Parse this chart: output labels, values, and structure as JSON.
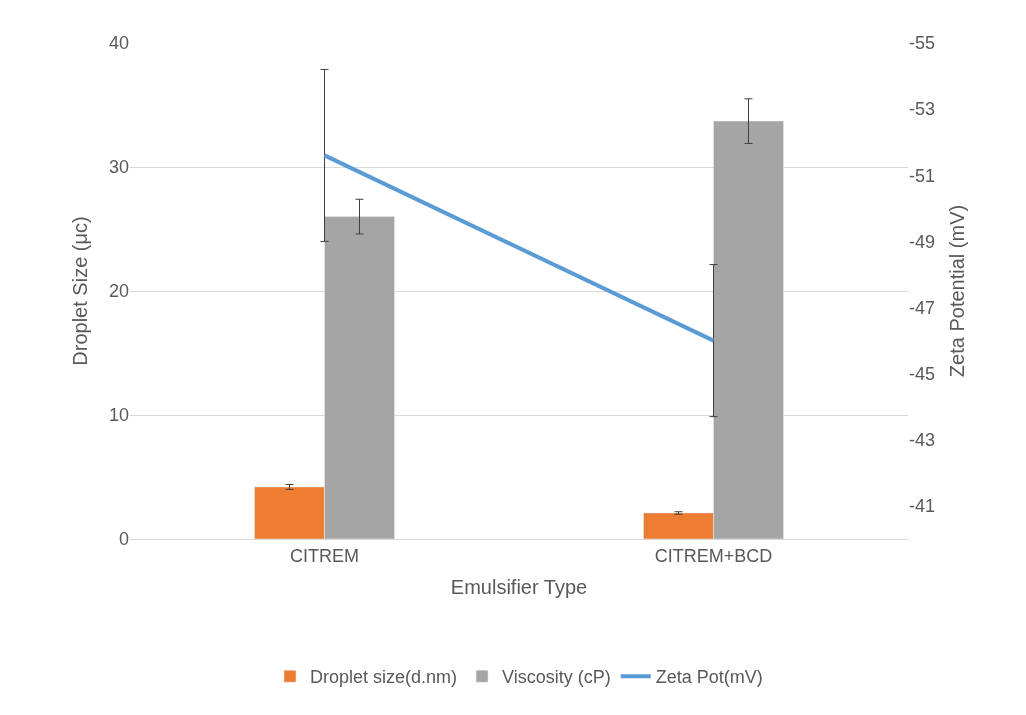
{
  "chart_data": {
    "type": "bar",
    "xlabel": "Emulsifier Type",
    "ylabel": "Droplet Size (μc)",
    "y2label": "Zeta Potential (mV)",
    "categories": [
      "CITREM",
      "CITREM+BCD"
    ],
    "series": [
      {
        "name": "Droplet size(d.nm)",
        "color": "#ed7d31",
        "values": [
          4.2,
          2.1
        ],
        "errors": [
          0.2,
          0.1
        ]
      },
      {
        "name": "Viscosity (cP)",
        "color": "#a5a5a5",
        "values": [
          26.0,
          33.7
        ],
        "errors": [
          1.4,
          1.8
        ]
      },
      {
        "name": "Zeta Pot(mV)",
        "type": "line",
        "axis": "y2",
        "color": "#5b9bd5",
        "values": [
          -51.6,
          -46.0
        ],
        "errors": [
          2.6,
          2.3
        ]
      }
    ],
    "ylim": [
      0,
      40
    ],
    "yticks": [
      0,
      10,
      20,
      30,
      40
    ],
    "y2lim": [
      -40,
      -55
    ],
    "y2ticks": [
      -41,
      -43,
      -45,
      -47,
      -49,
      -51,
      -53,
      -55
    ],
    "grid": "y",
    "legend": "bottom",
    "marker": "none"
  }
}
